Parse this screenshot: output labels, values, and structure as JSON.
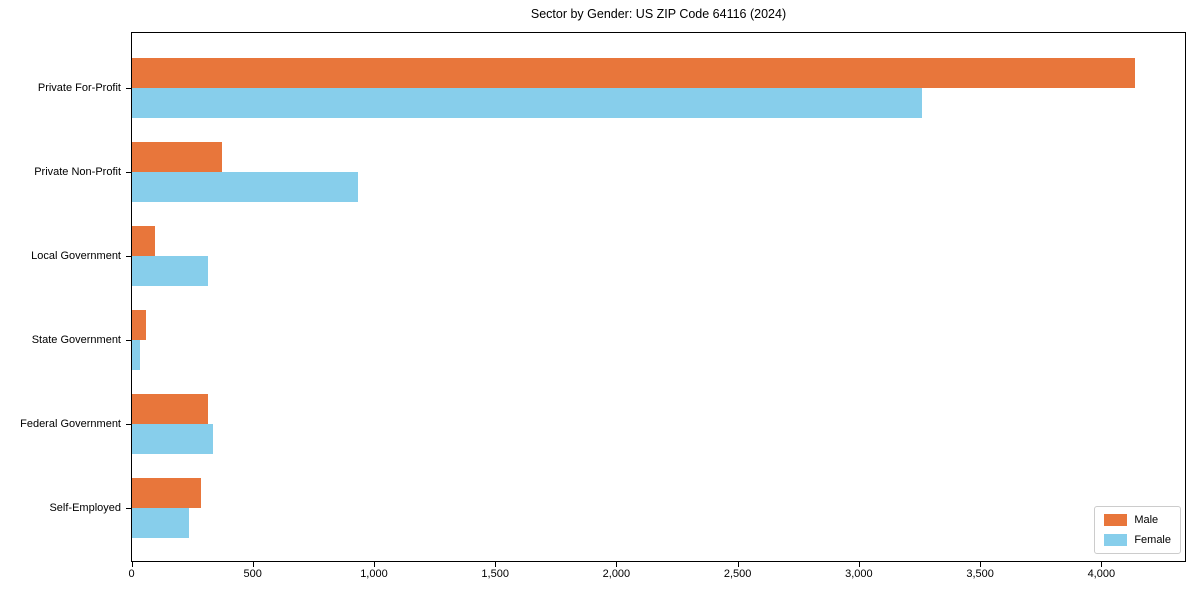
{
  "chart_data": {
    "type": "bar",
    "orientation": "horizontal",
    "title": "Sector by Gender: US ZIP Code 64116 (2024)",
    "categories": [
      "Private For-Profit",
      "Private Non-Profit",
      "Local Government",
      "State Government",
      "Federal Government",
      "Self-Employed"
    ],
    "series": [
      {
        "name": "Male",
        "color": "#e8763b",
        "values": [
          4136,
          371,
          95,
          58,
          313,
          284
        ]
      },
      {
        "name": "Female",
        "color": "#87ceeb",
        "values": [
          3259,
          931,
          313,
          32,
          335,
          236
        ]
      }
    ],
    "xlabel": "",
    "ylabel": "",
    "xlim": [
      0,
      4343
    ],
    "xticks": [
      0,
      500,
      1000,
      1500,
      2000,
      2500,
      3000,
      3500,
      4000
    ],
    "xtick_labels": [
      "0",
      "500",
      "1,000",
      "1,500",
      "2,000",
      "2,500",
      "3,000",
      "3,500",
      "4,000"
    ],
    "grid": false,
    "legend": {
      "position": "lower right",
      "entries": [
        "Male",
        "Female"
      ]
    }
  },
  "colors": {
    "male": "#e8763b",
    "female": "#87ceeb",
    "axis": "#000000",
    "legend_border": "#cccccc",
    "background": "#ffffff"
  }
}
